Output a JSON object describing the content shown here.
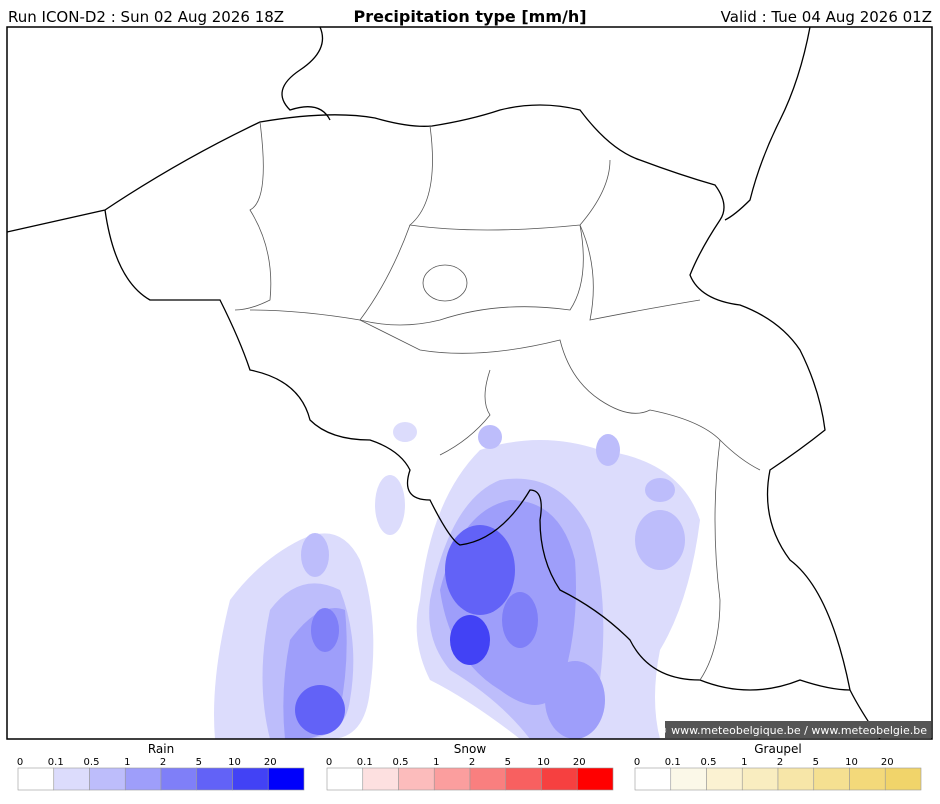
{
  "header": {
    "run": "Run ICON-D2 : Sun 02 Aug 2026 18Z",
    "title": "Precipitation type [mm/h]",
    "valid": "Valid : Tue 04 Aug 2026 01Z"
  },
  "copyright": "© www.meteobelgique.be / www.meteobelgie.be",
  "legends": [
    {
      "title": "Rain",
      "ticks": [
        "0",
        "0.1",
        "0.5",
        "1",
        "2",
        "5",
        "10",
        "20"
      ],
      "colors": [
        "#ffffff",
        "#dcdcfc",
        "#bdbdfb",
        "#9e9efa",
        "#7f7ff8",
        "#6262f7",
        "#4242f5",
        "#0000fb"
      ]
    },
    {
      "title": "Snow",
      "ticks": [
        "0",
        "0.1",
        "0.5",
        "1",
        "2",
        "5",
        "10",
        "20"
      ],
      "colors": [
        "#ffffff",
        "#fde0e0",
        "#fcbcbc",
        "#fb9e9e",
        "#f97f7f",
        "#f86060",
        "#f64040",
        "#ff0000"
      ]
    },
    {
      "title": "Graupel",
      "ticks": [
        "0",
        "0.1",
        "0.5",
        "1",
        "2",
        "5",
        "10",
        "20"
      ],
      "colors": [
        "#ffffff",
        "#fbf8e8",
        "#fbf2d2",
        "#f9edc0",
        "#f7e6a8",
        "#f5e091",
        "#f3d97a",
        "#f1d46a"
      ]
    }
  ]
}
